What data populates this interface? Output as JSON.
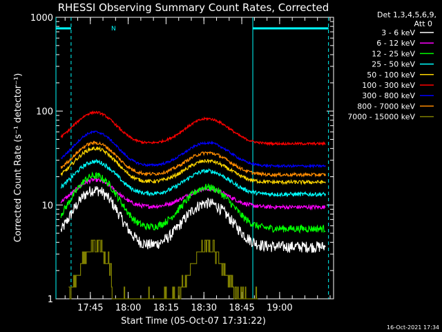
{
  "chart_data": {
    "type": "line",
    "title": "RHESSI Observing Summary Count Rates, Corrected",
    "xlabel": "Start Time (05-Oct-07 17:31:22)",
    "ylabel": "Corrected Count Rate (s⁻¹ detector⁻¹)",
    "yscale": "log",
    "ylim": [
      1,
      1000
    ],
    "xlim_minutes_after_17_31_22": [
      0,
      110
    ],
    "yticks": [
      "1",
      "10",
      "100",
      "1000"
    ],
    "xticks": [
      {
        "label": "17:45",
        "min": 13.63
      },
      {
        "label": "18:00",
        "min": 28.63
      },
      {
        "label": "18:15",
        "min": 43.63
      },
      {
        "label": "18:30",
        "min": 58.63
      },
      {
        "label": "18:45",
        "min": 73.63
      },
      {
        "label": "19:00",
        "min": 88.63
      }
    ],
    "legend": {
      "header": [
        "Det 1,3,4,5,6,9,",
        "Att 0"
      ],
      "position": "right"
    },
    "series": [
      {
        "name": "3 - 6 keV",
        "color": "#ffffff",
        "base": 3.6,
        "peak1": 14.5,
        "peak2": 10.5,
        "noise": 0.14
      },
      {
        "name": "6 - 12 keV",
        "color": "#ff00ff",
        "base": 9.5,
        "peak1": 18.5,
        "peak2": 14.8,
        "noise": 0.05
      },
      {
        "name": "12 - 25 keV",
        "color": "#00ff00",
        "base": 5.6,
        "peak1": 20.5,
        "peak2": 15.5,
        "noise": 0.09
      },
      {
        "name": "25 - 50 keV",
        "color": "#00ffff",
        "base": 13.0,
        "peak1": 29.0,
        "peak2": 23.0,
        "noise": 0.05
      },
      {
        "name": "50 - 100 keV",
        "color": "#ffd700",
        "base": 17.5,
        "peak1": 40.0,
        "peak2": 29.5,
        "noise": 0.045
      },
      {
        "name": "100 - 300 keV",
        "color": "#ff0000",
        "base": 45.0,
        "peak1": 97.0,
        "peak2": 83.0,
        "noise": 0.03
      },
      {
        "name": "300 - 800 keV",
        "color": "#0000ff",
        "base": 26.0,
        "peak1": 60.0,
        "peak2": 46.0,
        "noise": 0.03
      },
      {
        "name": "800 - 7000 keV",
        "color": "#ff8c00",
        "base": 21.0,
        "peak1": 46.0,
        "peak2": 36.0,
        "noise": 0.04
      },
      {
        "name": "7000 - 15000 keV",
        "color": "#808000",
        "base": 1.0,
        "peak1": 3.7,
        "peak2": 3.6,
        "noise": 0.0
      }
    ],
    "night_intervals_minutes": [
      [
        0,
        6
      ],
      [
        78,
        108
      ]
    ],
    "saa_marker_label": "N",
    "annotations": [
      "16-Oct-2021 17:34"
    ]
  }
}
